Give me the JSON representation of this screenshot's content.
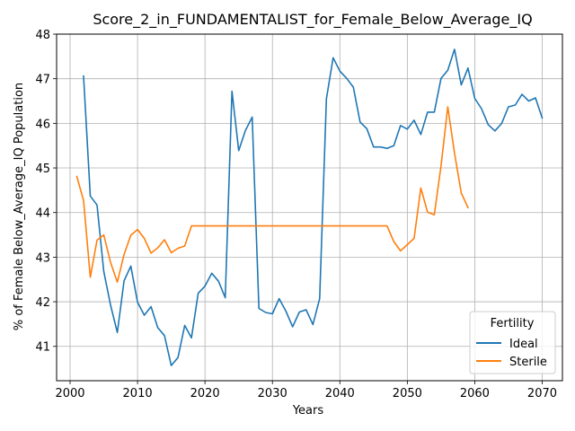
{
  "chart_data": {
    "type": "line",
    "title": "Score_2_in_FUNDAMENTALIST_for_Female_Below_Average_IQ",
    "xlabel": "Years",
    "ylabel": "% of Female Below_Average_IQ Population",
    "xlim": [
      1998,
      2073
    ],
    "ylim": [
      40.23,
      48.0
    ],
    "xticks": [
      2000,
      2010,
      2020,
      2030,
      2040,
      2050,
      2060,
      2070
    ],
    "yticks": [
      41,
      42,
      43,
      44,
      45,
      46,
      47,
      48
    ],
    "grid": true,
    "legend": {
      "title": "Fertility",
      "position": "lower right"
    },
    "series": [
      {
        "name": "Ideal",
        "color": "#1f77b4",
        "x": [
          2002,
          2003,
          2004,
          2005,
          2006,
          2007,
          2008,
          2009,
          2010,
          2011,
          2012,
          2013,
          2014,
          2015,
          2016,
          2017,
          2018,
          2019,
          2020,
          2021,
          2022,
          2023,
          2024,
          2025,
          2026,
          2027,
          2028,
          2029,
          2030,
          2031,
          2032,
          2033,
          2034,
          2035,
          2036,
          2037,
          2038,
          2039,
          2040,
          2041,
          2042,
          2043,
          2044,
          2045,
          2046,
          2047,
          2048,
          2049,
          2050,
          2051,
          2052,
          2053,
          2054,
          2055,
          2056,
          2057,
          2058,
          2059,
          2060,
          2061,
          2062,
          2063,
          2064,
          2065,
          2066,
          2067,
          2068,
          2069,
          2070
        ],
        "values": [
          47.06,
          44.37,
          44.17,
          42.68,
          41.92,
          41.31,
          42.47,
          42.8,
          41.99,
          41.7,
          41.89,
          41.42,
          41.24,
          40.57,
          40.75,
          41.47,
          41.19,
          42.19,
          42.35,
          42.64,
          42.46,
          42.09,
          46.72,
          45.39,
          45.84,
          46.14,
          41.85,
          41.76,
          41.73,
          42.07,
          41.79,
          41.44,
          41.77,
          41.82,
          41.49,
          42.07,
          46.55,
          47.47,
          47.17,
          47.01,
          46.81,
          46.03,
          45.88,
          45.47,
          45.47,
          45.44,
          45.5,
          45.95,
          45.87,
          46.07,
          45.75,
          46.25,
          46.25,
          47.01,
          47.19,
          47.66,
          46.86,
          47.24,
          46.56,
          46.33,
          45.97,
          45.83,
          46.0,
          46.37,
          46.41,
          46.65,
          46.5,
          46.57,
          46.12
        ]
      },
      {
        "name": "Sterile",
        "color": "#ff7f0e",
        "x": [
          2001,
          2002,
          2003,
          2004,
          2005,
          2006,
          2007,
          2008,
          2009,
          2010,
          2011,
          2012,
          2013,
          2014,
          2015,
          2016,
          2017,
          2018,
          2019,
          2020,
          2021,
          2022,
          2023,
          2024,
          2025,
          2026,
          2027,
          2028,
          2029,
          2030,
          2031,
          2032,
          2033,
          2034,
          2035,
          2036,
          2037,
          2038,
          2039,
          2040,
          2041,
          2042,
          2043,
          2044,
          2045,
          2046,
          2047,
          2048,
          2049,
          2050,
          2051,
          2052,
          2053,
          2054,
          2055,
          2056,
          2057,
          2058,
          2059
        ],
        "values": [
          44.81,
          44.27,
          42.55,
          43.38,
          43.5,
          42.88,
          42.44,
          43.06,
          43.49,
          43.62,
          43.42,
          43.09,
          43.21,
          43.39,
          43.1,
          43.2,
          43.25,
          43.7,
          43.7,
          43.7,
          43.7,
          43.7,
          43.7,
          43.7,
          43.7,
          43.7,
          43.7,
          43.7,
          43.7,
          43.7,
          43.7,
          43.7,
          43.7,
          43.7,
          43.7,
          43.7,
          43.7,
          43.7,
          43.7,
          43.7,
          43.7,
          43.7,
          43.7,
          43.7,
          43.7,
          43.7,
          43.7,
          43.35,
          43.14,
          43.28,
          43.42,
          44.55,
          44.01,
          43.95,
          45.05,
          46.37,
          45.33,
          44.44,
          44.11
        ]
      }
    ]
  }
}
